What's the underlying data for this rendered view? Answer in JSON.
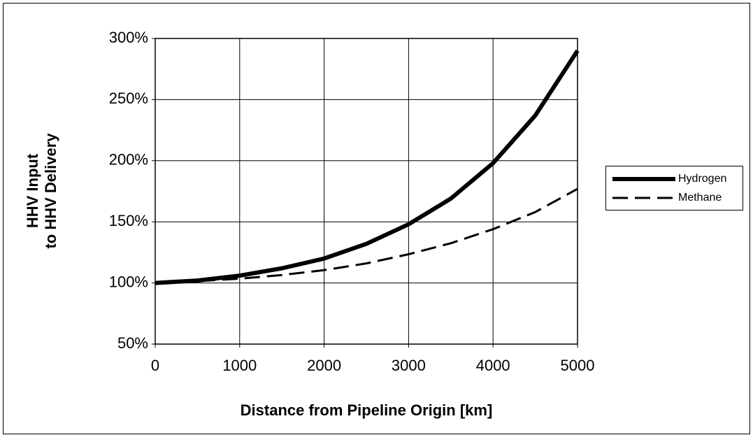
{
  "chart_data": {
    "type": "line",
    "xlabel": "Distance from Pipeline Origin [km]",
    "ylabel": [
      "HHV Input",
      "to HHV Delivery"
    ],
    "x": [
      0,
      500,
      1000,
      1500,
      2000,
      2500,
      3000,
      3500,
      4000,
      4500,
      5000
    ],
    "series": [
      {
        "name": "Hydrogen",
        "color": "#000000",
        "line_style": "solid",
        "values": [
          100,
          102,
          106,
          112,
          120,
          132,
          148,
          169,
          198,
          237,
          290
        ]
      },
      {
        "name": "Methane",
        "color": "#000000",
        "line_style": "dashed",
        "values": [
          100,
          101.5,
          103.5,
          106.5,
          110.5,
          116,
          123.5,
          132.5,
          144,
          158,
          177
        ]
      }
    ],
    "xlim": [
      0,
      5000
    ],
    "xticks": [
      0,
      1000,
      2000,
      3000,
      4000,
      5000
    ],
    "ylim": [
      50,
      300
    ],
    "yticks": [
      {
        "value": 50,
        "label": "50%"
      },
      {
        "value": 100,
        "label": "100%"
      },
      {
        "value": 150,
        "label": "150%"
      },
      {
        "value": 200,
        "label": "200%"
      },
      {
        "value": 250,
        "label": "250%"
      },
      {
        "value": 300,
        "label": "300%"
      }
    ],
    "grid": true,
    "legend": "right"
  }
}
